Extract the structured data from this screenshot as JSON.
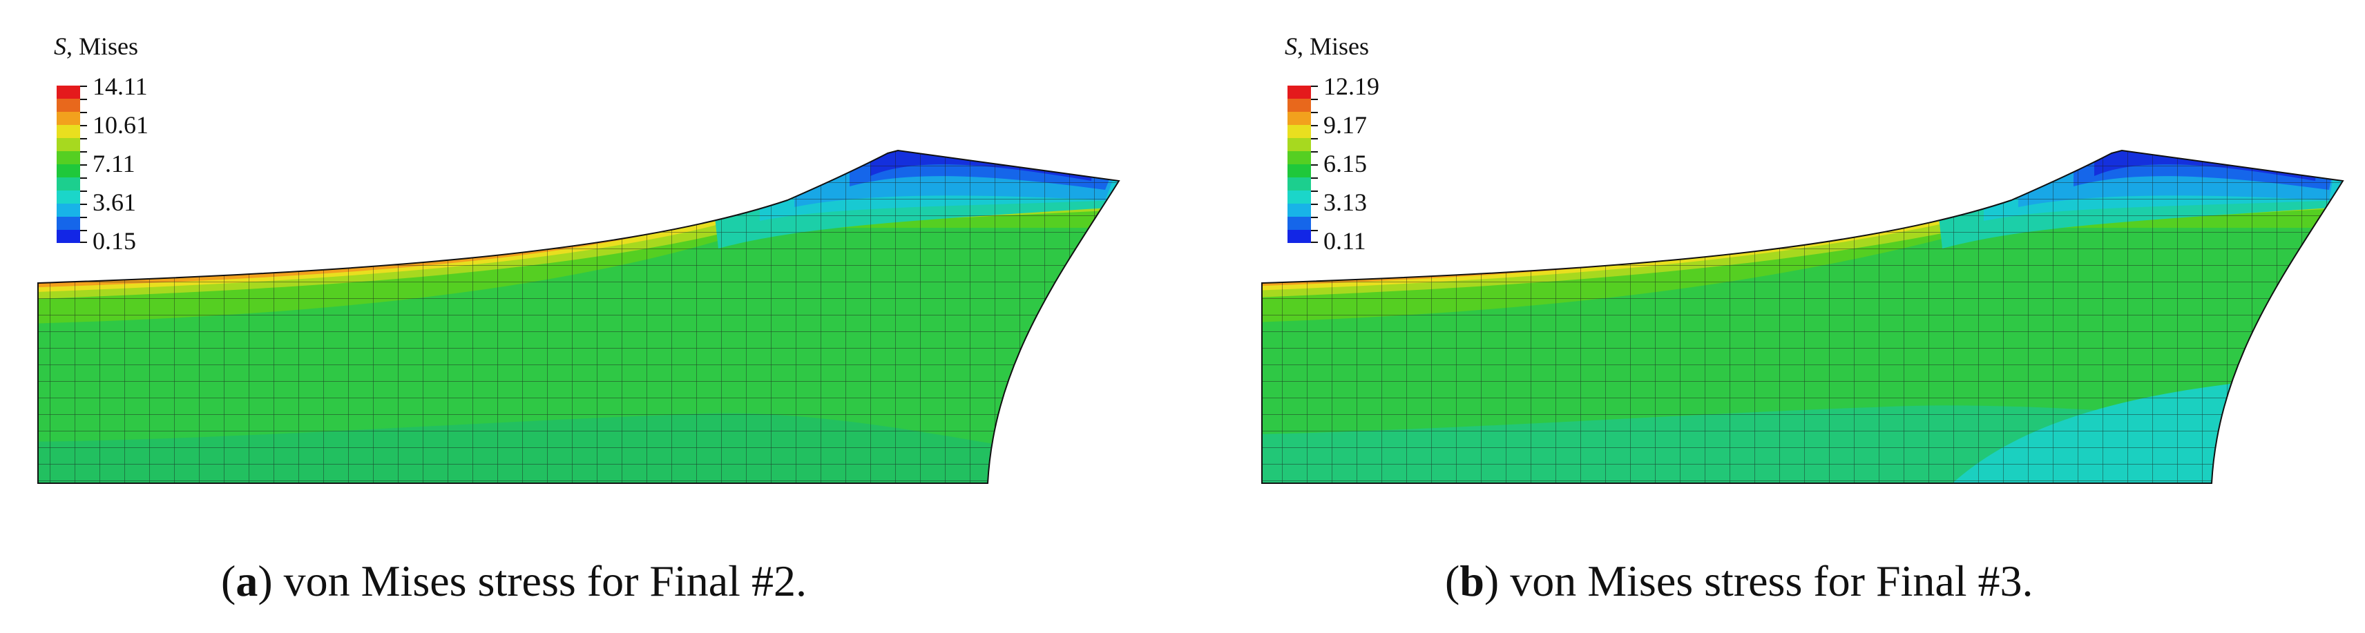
{
  "panels": [
    {
      "id": "a",
      "legend": {
        "symbol": "S",
        "title_rest": ", Mises",
        "labels": [
          "14.11",
          "10.61",
          "7.11",
          "3.61",
          "0.15"
        ],
        "colors": [
          "#e41a1c",
          "#e8681c",
          "#f2a11d",
          "#e9df1f",
          "#a7d91f",
          "#55cf22",
          "#1fc83b",
          "#1ccf8e",
          "#1bd6c9",
          "#18b3e8",
          "#1566ea",
          "#1226e6"
        ]
      },
      "caption": {
        "letter": "a",
        "text": "von Mises stress for Final #2."
      }
    },
    {
      "id": "b",
      "legend": {
        "symbol": "S",
        "title_rest": ", Mises",
        "labels": [
          "12.19",
          "9.17",
          "6.15",
          "3.13",
          "0.11"
        ],
        "colors": [
          "#e41a1c",
          "#e8681c",
          "#f2a11d",
          "#e9df1f",
          "#a7d91f",
          "#55cf22",
          "#1fc83b",
          "#1ccf8e",
          "#1bd6c9",
          "#18b3e8",
          "#1566ea",
          "#1226e6"
        ]
      },
      "caption": {
        "letter": "b",
        "text": "von Mises stress for Final #3."
      }
    }
  ]
}
